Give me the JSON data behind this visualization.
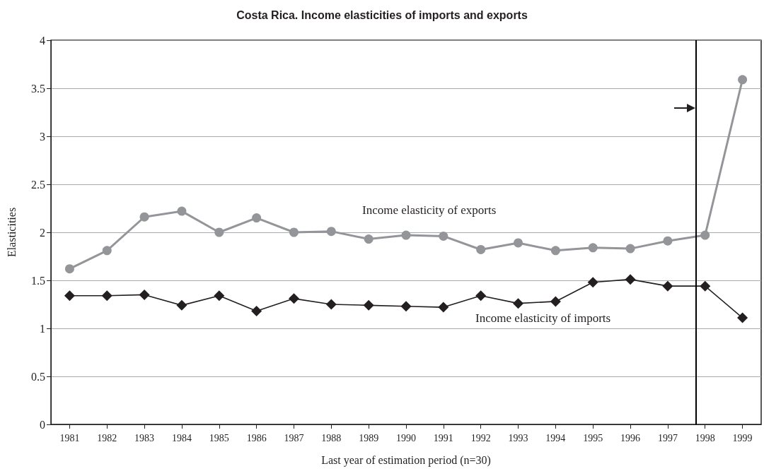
{
  "chart_data": {
    "type": "line",
    "title": "Costa Rica. Income elasticities of imports and exports",
    "xlabel": "Last year of estimation period (n=30)",
    "ylabel": "Elasticities",
    "x": [
      1981,
      1982,
      1983,
      1984,
      1985,
      1986,
      1987,
      1988,
      1989,
      1990,
      1991,
      1992,
      1993,
      1994,
      1995,
      1996,
      1997,
      1998,
      1999
    ],
    "xlim": [
      1980.5,
      1999.5
    ],
    "xticks": [
      1981,
      1982,
      1983,
      1984,
      1985,
      1986,
      1987,
      1988,
      1989,
      1990,
      1991,
      1992,
      1993,
      1994,
      1995,
      1996,
      1997,
      1998,
      1999
    ],
    "ylim": [
      0,
      4
    ],
    "yticks": [
      0,
      0.5,
      1,
      1.5,
      2,
      2.5,
      3,
      3.5,
      4
    ],
    "grid": "y",
    "legend": false,
    "series": [
      {
        "name": "Income elasticity of exports",
        "color": "#939598",
        "marker": "circle",
        "values": [
          1.62,
          1.81,
          2.16,
          2.22,
          2.0,
          2.15,
          2.0,
          2.01,
          1.93,
          1.97,
          1.96,
          1.82,
          1.89,
          1.81,
          1.84,
          1.83,
          1.91,
          1.97,
          3.59
        ]
      },
      {
        "name": "Income elasticity of imports",
        "color": "#231f20",
        "marker": "diamond",
        "values": [
          1.34,
          1.34,
          1.35,
          1.24,
          1.34,
          1.18,
          1.31,
          1.25,
          1.24,
          1.23,
          1.22,
          1.34,
          1.26,
          1.28,
          1.48,
          1.51,
          1.44,
          1.44,
          1.11
        ]
      }
    ],
    "ref_lines": [
      {
        "axis": "x",
        "value": 1997.75,
        "color": "#000000",
        "line_style": "solid"
      }
    ]
  }
}
